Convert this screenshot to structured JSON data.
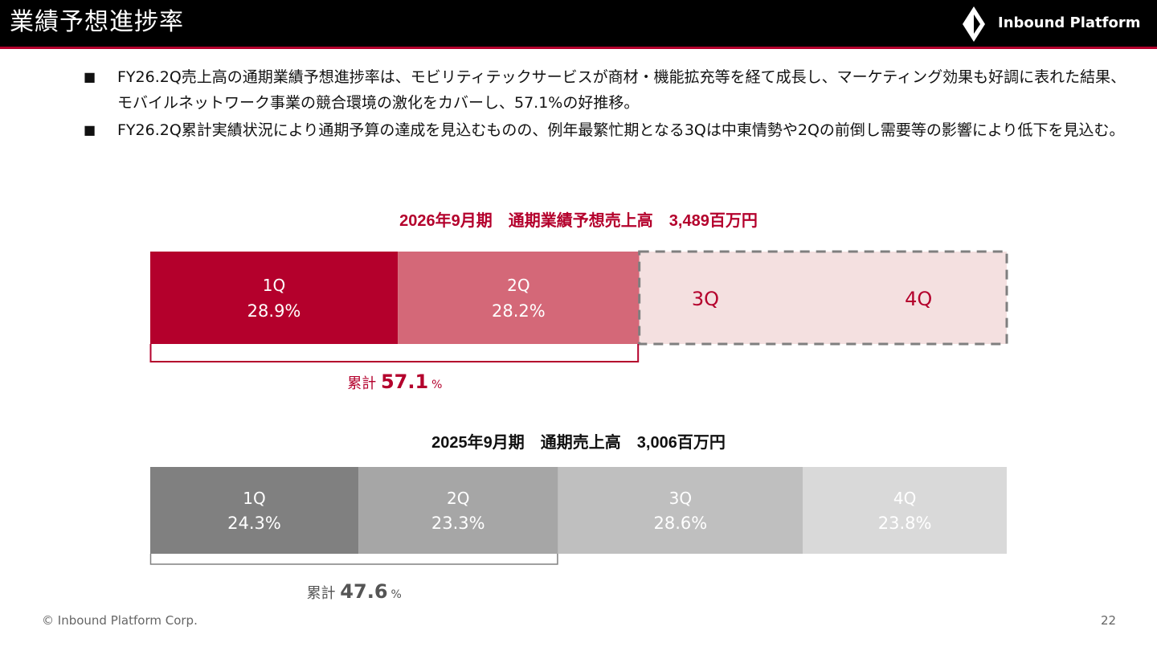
{
  "header": {
    "title": "業績予想進捗率",
    "logo_text": "Inbound Platform"
  },
  "bullets": [
    "FY26.2Q売上高の通期業績予想進捗率は、モビリティテックサービスが商材・機能拡充等を経て成長し、マーケティング効果も好調に表れた結果、モバイルネットワーク事業の競合環境の激化をカバーし、57.1%の好推移。",
    "FY26.2Q累計実績状況により通期予算の達成を見込むものの、例年最繁忙期となる3Qは中東情勢や2Qの前倒し需要等の影響により低下を見込む。"
  ],
  "bullet_mark": "■",
  "chart_data": [
    {
      "type": "bar",
      "orientation": "stacked-horizontal",
      "title": "2026年9月期　通期業績予想売上高　3,489百万円",
      "categories": [
        "1Q",
        "2Q",
        "3Q",
        "4Q"
      ],
      "values": [
        28.9,
        28.2,
        null,
        null
      ],
      "value_labels": [
        "28.9%",
        "28.2%",
        "",
        ""
      ],
      "forecast_remaining": 42.9,
      "cumulative": {
        "label": "累計",
        "value": "57.1",
        "unit": "%"
      },
      "colors": [
        "#b4002c",
        "#d46878",
        "#f4e0e0",
        "#f4e0e0"
      ],
      "label_colors": [
        "#ffffff",
        "#ffffff",
        "#b4002c",
        "#b4002c"
      ]
    },
    {
      "type": "bar",
      "orientation": "stacked-horizontal",
      "title": "2025年9月期　通期売上高　3,006百万円",
      "categories": [
        "1Q",
        "2Q",
        "3Q",
        "4Q"
      ],
      "values": [
        24.3,
        23.3,
        28.6,
        23.8
      ],
      "value_labels": [
        "24.3%",
        "23.3%",
        "28.6%",
        "23.8%"
      ],
      "cumulative": {
        "label": "累計",
        "value": "47.6",
        "unit": "%"
      },
      "colors": [
        "#808080",
        "#a6a6a6",
        "#bfbfbf",
        "#d9d9d9"
      ],
      "label_colors": [
        "#ffffff",
        "#ffffff",
        "#ffffff",
        "#ffffff"
      ]
    }
  ],
  "footer": {
    "copyright": "© Inbound Platform Corp.",
    "page_number": "22"
  }
}
